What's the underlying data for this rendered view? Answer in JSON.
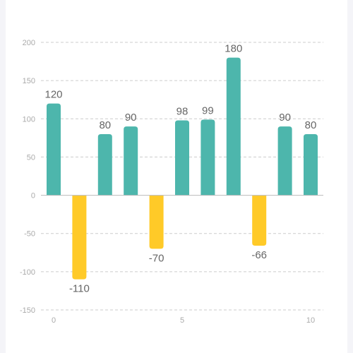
{
  "chart_data": {
    "type": "bar",
    "x": [
      0,
      1,
      2,
      3,
      4,
      5,
      6,
      7,
      8,
      9,
      10
    ],
    "values": [
      120,
      -110,
      80,
      90,
      -70,
      98,
      99,
      180,
      -66,
      90,
      80
    ],
    "data_labels": [
      "120",
      "-110",
      "80",
      "90",
      "-70",
      "98",
      "99",
      "180",
      "-66",
      "90",
      "80"
    ],
    "xlim": [
      0,
      10
    ],
    "x_ticks": [
      "0",
      "5",
      "10"
    ],
    "x_tick_values": [
      0,
      5,
      10
    ],
    "ylim": [
      -150,
      200
    ],
    "y_ticks": [
      "200",
      "150",
      "100",
      "50",
      "0",
      "-50",
      "-100",
      "-150"
    ],
    "y_tick_values": [
      200,
      150,
      100,
      50,
      0,
      -50,
      -100,
      -150
    ],
    "grid": true,
    "colors": {
      "positive": "#4db6ac",
      "negative": "#ffca28",
      "grid": "#cccccc",
      "axis": "#bbbbbb"
    }
  }
}
